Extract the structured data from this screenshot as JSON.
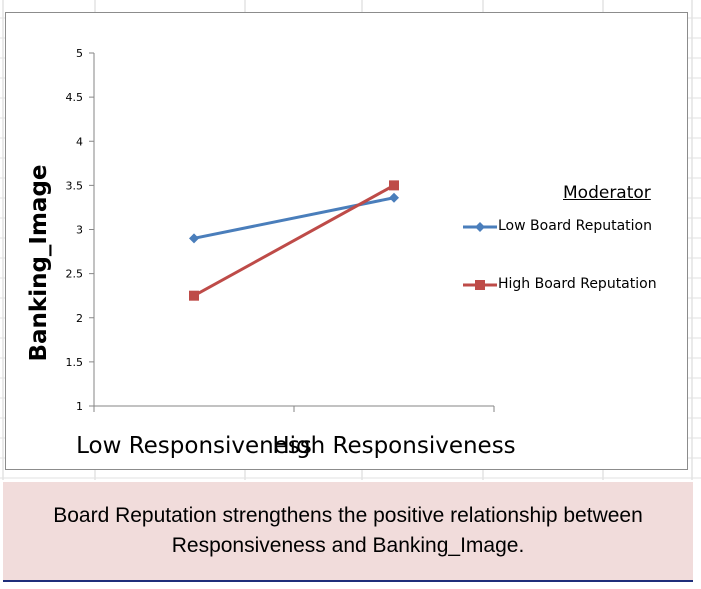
{
  "chart_data": {
    "type": "line",
    "categories": [
      "Low Responsiveness",
      "High Responsiveness"
    ],
    "ylabel": "Banking_Image",
    "ylim": [
      1,
      5
    ],
    "yticks": [
      "1",
      "1.5",
      "2",
      "2.5",
      "3",
      "3.5",
      "4",
      "4.5",
      "5"
    ],
    "grid": false,
    "legend": {
      "title": "Moderator",
      "placement": "right"
    },
    "series": [
      {
        "name": "Low Board Reputation",
        "values": [
          2.9,
          3.36
        ],
        "color": "#4a7ebb",
        "marker": "diamond"
      },
      {
        "name": "High Board Reputation",
        "values": [
          2.25,
          3.5
        ],
        "color": "#be4b48",
        "marker": "square"
      }
    ]
  },
  "caption": "Board Reputation strengthens the positive relationship between Responsiveness and Banking_Image."
}
